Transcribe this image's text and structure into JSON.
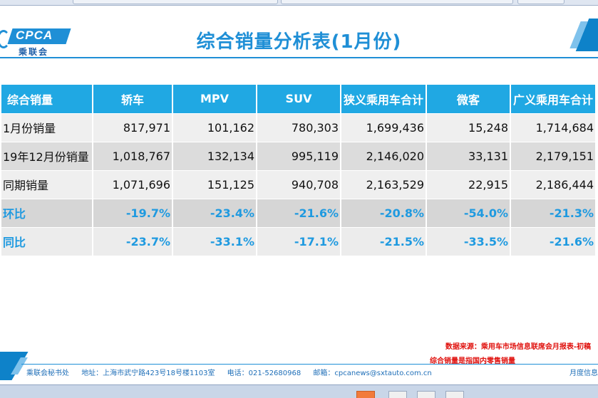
{
  "slide": {
    "logo": {
      "brand": "CPCA",
      "cn": "乘联会"
    },
    "title": "综合销量分析表(1月份)"
  },
  "table": {
    "headers": [
      "综合销量",
      "轿车",
      "MPV",
      "SUV",
      "狭义乘用车合计",
      "微客",
      "广义乘用车合计"
    ],
    "rows": [
      {
        "label": "1月份销量",
        "values": [
          "817,971",
          "101,162",
          "780,303",
          "1,699,436",
          "15,248",
          "1,714,684"
        ]
      },
      {
        "label": "19年12月份销量",
        "values": [
          "1,018,767",
          "132,134",
          "995,119",
          "2,146,020",
          "33,131",
          "2,179,151"
        ]
      },
      {
        "label": "同期销量",
        "values": [
          "1,071,696",
          "151,125",
          "940,708",
          "2,163,529",
          "22,915",
          "2,186,444"
        ]
      },
      {
        "label": "环比",
        "values": [
          "-19.7%",
          "-23.4%",
          "-21.6%",
          "-20.8%",
          "-54.0%",
          "-21.3%"
        ]
      },
      {
        "label": "同比",
        "values": [
          "-23.7%",
          "-33.1%",
          "-17.1%",
          "-21.5%",
          "-33.5%",
          "-21.6%"
        ]
      }
    ]
  },
  "notes": {
    "source": "数据来源：乘用车市场信息联席会月报表-初稿",
    "definition": "综合销量是指国内零售销量"
  },
  "footer": {
    "org": "乘联会秘书处",
    "address": "地址：上海市武宁路423号18号楼1103室",
    "phone": "电话：021-52680968",
    "email": "邮箱：cpcanews@sxtauto.com.cn",
    "right": "月度信息"
  },
  "colors": {
    "accent": "#1f8fd6",
    "header_bg": "#20a8e3",
    "note_red": "#e0120e"
  }
}
